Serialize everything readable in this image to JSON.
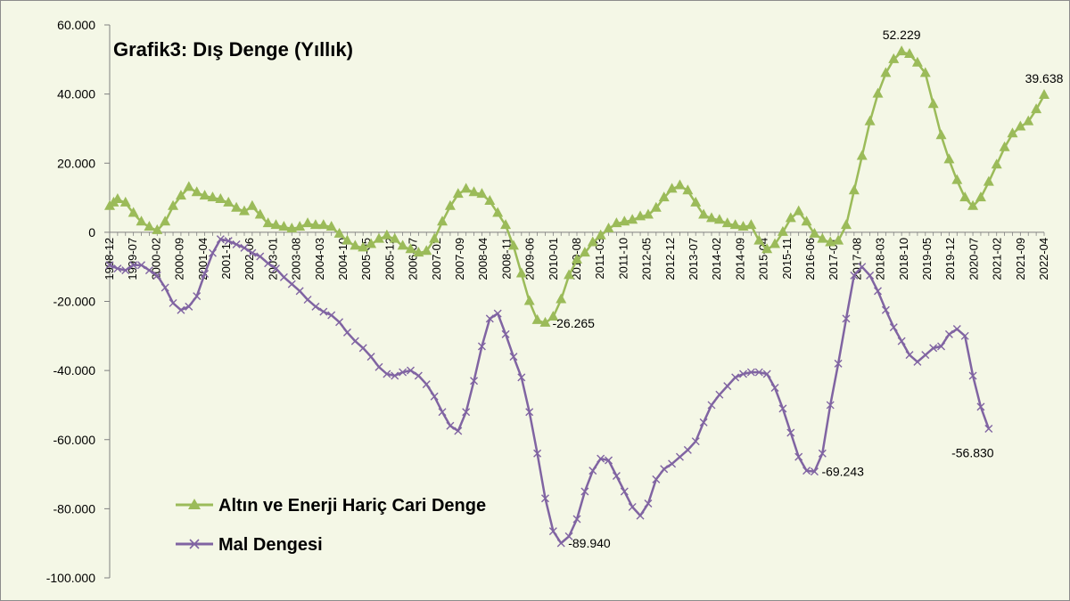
{
  "chart_data": {
    "type": "line",
    "title": "Grafik3: Dış Denge (Yıllık)",
    "xlabel": "",
    "ylabel": "",
    "ylim": [
      -100000,
      60000
    ],
    "y_ticks": [
      60000,
      40000,
      20000,
      0,
      -20000,
      -40000,
      -60000,
      -80000,
      -100000
    ],
    "y_tick_labels": [
      "60.000",
      "40.000",
      "20.000",
      "0",
      "-20.000",
      "-40.000",
      "-60.000",
      "-80.000",
      "-100.000"
    ],
    "x_tick_labels": [
      "1998-12",
      "1999-07",
      "2000-02",
      "2000-09",
      "2001-04",
      "2001-11",
      "2002-06",
      "2003-01",
      "2003-08",
      "2004-03",
      "2004-10",
      "2005-05",
      "2005-12",
      "2006-07",
      "2007-02",
      "2007-09",
      "2008-04",
      "2008-11",
      "2009-06",
      "2010-01",
      "2010-08",
      "2011-03",
      "2011-10",
      "2012-05",
      "2012-12",
      "2013-07",
      "2014-02",
      "2014-09",
      "2015-04",
      "2015-11",
      "2016-06",
      "2017-01",
      "2017-08",
      "2018-03",
      "2018-10",
      "2019-05",
      "2019-12",
      "2020-07",
      "2021-02",
      "2021-09",
      "2022-04"
    ],
    "legend": {
      "placement": "bottom-left",
      "entries": [
        "Altın ve Enerji Hariç Cari Denge",
        "Mal Dengesi"
      ]
    },
    "series": [
      {
        "name": "Altın ve Enerji Hariç Cari Denge",
        "color": "#9bbb59",
        "marker": "triangle",
        "points": [
          [
            0,
            7500
          ],
          [
            0.5,
            8500
          ],
          [
            1,
            9500
          ],
          [
            2,
            8500
          ],
          [
            3,
            5500
          ],
          [
            4,
            3000
          ],
          [
            5,
            1500
          ],
          [
            6,
            500
          ],
          [
            7,
            3000
          ],
          [
            8,
            7500
          ],
          [
            9,
            10500
          ],
          [
            10,
            13000
          ],
          [
            11,
            11500
          ],
          [
            12,
            10500
          ],
          [
            13,
            10000
          ],
          [
            14,
            9500
          ],
          [
            15,
            8500
          ],
          [
            16,
            7000
          ],
          [
            17,
            6000
          ],
          [
            18,
            7500
          ],
          [
            19,
            5000
          ],
          [
            20,
            2500
          ],
          [
            21,
            2000
          ],
          [
            22,
            1500
          ],
          [
            23,
            1000
          ],
          [
            24,
            1500
          ],
          [
            25,
            2500
          ],
          [
            26,
            2000
          ],
          [
            27,
            2000
          ],
          [
            28,
            1500
          ],
          [
            29,
            -500
          ],
          [
            30,
            -2500
          ],
          [
            31,
            -4000
          ],
          [
            32,
            -4500
          ],
          [
            33,
            -3500
          ],
          [
            34,
            -2000
          ],
          [
            35,
            -1000
          ],
          [
            36,
            -2000
          ],
          [
            37,
            -4000
          ],
          [
            38,
            -5000
          ],
          [
            39,
            -6000
          ],
          [
            40,
            -5500
          ],
          [
            41,
            -2000
          ],
          [
            42,
            3000
          ],
          [
            43,
            7500
          ],
          [
            44,
            11000
          ],
          [
            45,
            12500
          ],
          [
            46,
            11500
          ],
          [
            47,
            11000
          ],
          [
            48,
            9000
          ],
          [
            49,
            5500
          ],
          [
            50,
            2000
          ],
          [
            51,
            -4000
          ],
          [
            52,
            -12000
          ],
          [
            53,
            -20000
          ],
          [
            54,
            -25500
          ],
          [
            55,
            -26265
          ],
          [
            56,
            -24500
          ],
          [
            57,
            -19500
          ],
          [
            58,
            -12500
          ],
          [
            59,
            -8000
          ],
          [
            60,
            -6000
          ],
          [
            61,
            -3000
          ],
          [
            62,
            -1000
          ],
          [
            63,
            1000
          ],
          [
            64,
            2500
          ],
          [
            65,
            3000
          ],
          [
            66,
            3500
          ],
          [
            67,
            4500
          ],
          [
            68,
            5000
          ],
          [
            69,
            7000
          ],
          [
            70,
            10000
          ],
          [
            71,
            12500
          ],
          [
            72,
            13500
          ],
          [
            73,
            12000
          ],
          [
            74,
            8500
          ],
          [
            75,
            5000
          ],
          [
            76,
            4000
          ],
          [
            77,
            3500
          ],
          [
            78,
            2500
          ],
          [
            79,
            2000
          ],
          [
            80,
            1500
          ],
          [
            81,
            2000
          ],
          [
            82,
            -2500
          ],
          [
            83,
            -5000
          ],
          [
            84,
            -3500
          ],
          [
            85,
            0
          ],
          [
            86,
            4000
          ],
          [
            87,
            6000
          ],
          [
            88,
            3000
          ],
          [
            89,
            -500
          ],
          [
            90,
            -2000
          ],
          [
            91,
            -3000
          ],
          [
            92,
            -2500
          ],
          [
            93,
            2000
          ],
          [
            94,
            12000
          ],
          [
            95,
            22000
          ],
          [
            96,
            32000
          ],
          [
            97,
            40000
          ],
          [
            98,
            46000
          ],
          [
            99,
            50000
          ],
          [
            100,
            52229
          ],
          [
            101,
            51500
          ],
          [
            102,
            49000
          ],
          [
            103,
            46000
          ],
          [
            104,
            37000
          ],
          [
            105,
            28000
          ],
          [
            106,
            21000
          ],
          [
            107,
            15000
          ],
          [
            108,
            10000
          ],
          [
            109,
            7500
          ],
          [
            110,
            10000
          ],
          [
            111,
            14500
          ],
          [
            112,
            19500
          ],
          [
            113,
            24500
          ],
          [
            114,
            28500
          ],
          [
            115,
            30500
          ],
          [
            116,
            32000
          ],
          [
            117,
            35500
          ],
          [
            118,
            39638
          ]
        ]
      },
      {
        "name": "Mal Dengesi",
        "color": "#8064a2",
        "marker": "x",
        "points": [
          [
            0,
            -9500
          ],
          [
            1,
            -10500
          ],
          [
            2,
            -11000
          ],
          [
            3,
            -9500
          ],
          [
            4,
            -9500
          ],
          [
            5,
            -11000
          ],
          [
            6,
            -12500
          ],
          [
            7,
            -16000
          ],
          [
            8,
            -20500
          ],
          [
            9,
            -22500
          ],
          [
            10,
            -21500
          ],
          [
            11,
            -18500
          ],
          [
            12,
            -12000
          ],
          [
            13,
            -6000
          ],
          [
            14,
            -2000
          ],
          [
            15,
            -2500
          ],
          [
            16,
            -3500
          ],
          [
            17,
            -4500
          ],
          [
            18,
            -6000
          ],
          [
            19,
            -7000
          ],
          [
            20,
            -9000
          ],
          [
            21,
            -10500
          ],
          [
            22,
            -13000
          ],
          [
            23,
            -15000
          ],
          [
            24,
            -17000
          ],
          [
            25,
            -19500
          ],
          [
            26,
            -21500
          ],
          [
            27,
            -23000
          ],
          [
            28,
            -24000
          ],
          [
            29,
            -26000
          ],
          [
            30,
            -29000
          ],
          [
            31,
            -31500
          ],
          [
            32,
            -33500
          ],
          [
            33,
            -36000
          ],
          [
            34,
            -39000
          ],
          [
            35,
            -41000
          ],
          [
            36,
            -41500
          ],
          [
            37,
            -40500
          ],
          [
            38,
            -40000
          ],
          [
            39,
            -41500
          ],
          [
            40,
            -44000
          ],
          [
            41,
            -47500
          ],
          [
            42,
            -52000
          ],
          [
            43,
            -56000
          ],
          [
            44,
            -57500
          ],
          [
            45,
            -52000
          ],
          [
            46,
            -43000
          ],
          [
            47,
            -33000
          ],
          [
            48,
            -25000
          ],
          [
            49,
            -23500
          ],
          [
            50,
            -29500
          ],
          [
            51,
            -36000
          ],
          [
            52,
            -42000
          ],
          [
            53,
            -52000
          ],
          [
            54,
            -64000
          ],
          [
            55,
            -77000
          ],
          [
            56,
            -86500
          ],
          [
            57,
            -89940
          ],
          [
            58,
            -88000
          ],
          [
            59,
            -83000
          ],
          [
            60,
            -75000
          ],
          [
            61,
            -69000
          ],
          [
            62,
            -65500
          ],
          [
            63,
            -66000
          ],
          [
            64,
            -70500
          ],
          [
            65,
            -75000
          ],
          [
            66,
            -79500
          ],
          [
            67,
            -82000
          ],
          [
            68,
            -78500
          ],
          [
            69,
            -71500
          ],
          [
            70,
            -68500
          ],
          [
            71,
            -67000
          ],
          [
            72,
            -65000
          ],
          [
            73,
            -63000
          ],
          [
            74,
            -60500
          ],
          [
            75,
            -55000
          ],
          [
            76,
            -50000
          ],
          [
            77,
            -47000
          ],
          [
            78,
            -44500
          ],
          [
            79,
            -42000
          ],
          [
            80,
            -41000
          ],
          [
            81,
            -40500
          ],
          [
            82,
            -40500
          ],
          [
            83,
            -41000
          ],
          [
            84,
            -45000
          ],
          [
            85,
            -51000
          ],
          [
            86,
            -58000
          ],
          [
            87,
            -65000
          ],
          [
            88,
            -69000
          ],
          [
            89,
            -69243
          ],
          [
            90,
            -64000
          ],
          [
            91,
            -50000
          ],
          [
            92,
            -38000
          ],
          [
            93,
            -25000
          ],
          [
            94,
            -12500
          ],
          [
            95,
            -10000
          ],
          [
            96,
            -12500
          ],
          [
            97,
            -17000
          ],
          [
            98,
            -22500
          ],
          [
            99,
            -27500
          ],
          [
            100,
            -31500
          ],
          [
            101,
            -35500
          ],
          [
            102,
            -37500
          ],
          [
            103,
            -35500
          ],
          [
            104,
            -33500
          ],
          [
            105,
            -33000
          ],
          [
            106,
            -29500
          ],
          [
            107,
            -28000
          ],
          [
            108,
            -30000
          ],
          [
            109,
            -41500
          ],
          [
            110,
            -50500
          ],
          [
            111,
            -56830
          ]
        ]
      }
    ],
    "data_labels": [
      {
        "text": "52.229",
        "series": 0,
        "x": 100,
        "y": 52229,
        "anchor": "above"
      },
      {
        "text": "39.638",
        "series": 0,
        "x": 118,
        "y": 39638,
        "anchor": "above"
      },
      {
        "text": "-26.265",
        "series": 0,
        "x": 55,
        "y": -26265,
        "anchor": "right"
      },
      {
        "text": "-89.940",
        "series": 1,
        "x": 57,
        "y": -89940,
        "anchor": "right"
      },
      {
        "text": "-69.243",
        "series": 1,
        "x": 89,
        "y": -69243,
        "anchor": "right"
      },
      {
        "text": "-56.830",
        "series": 1,
        "x": 111,
        "y": -56830,
        "anchor": "below"
      }
    ]
  }
}
